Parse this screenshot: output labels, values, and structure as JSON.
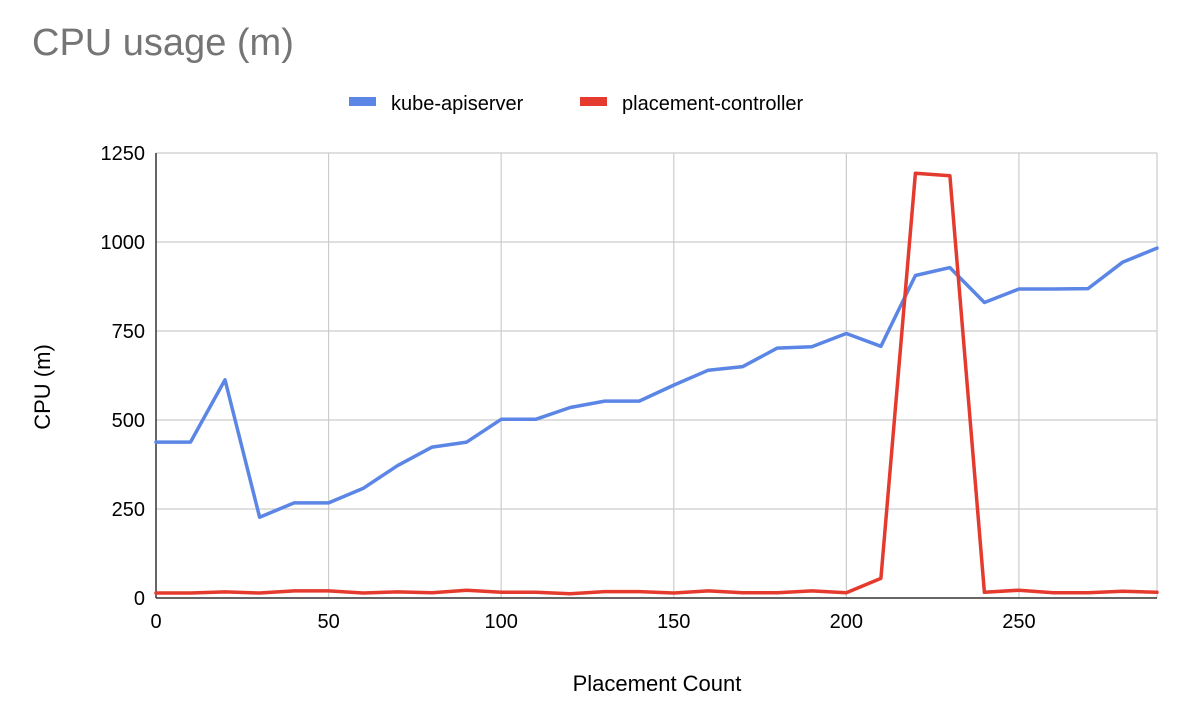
{
  "chart_data": {
    "type": "line",
    "title": "CPU usage (m)",
    "xlabel": "Placement Count",
    "ylabel": "CPU (m)",
    "xlim": [
      0,
      290
    ],
    "ylim": [
      0,
      1250
    ],
    "xticks": [
      0,
      50,
      100,
      150,
      200,
      250
    ],
    "yticks": [
      0,
      250,
      500,
      750,
      1000,
      1250
    ],
    "grid": true,
    "legend_position": "top-center",
    "x": [
      0,
      10,
      20,
      30,
      40,
      50,
      60,
      70,
      80,
      90,
      100,
      110,
      120,
      130,
      140,
      150,
      160,
      170,
      180,
      190,
      200,
      210,
      220,
      230,
      240,
      250,
      260,
      270,
      280,
      290
    ],
    "series": [
      {
        "name": "kube-apiserver",
        "color": "#5b86e5",
        "values": [
          438,
          438,
          613,
          227,
          267,
          267,
          308,
          372,
          424,
          438,
          502,
          502,
          535,
          553,
          553,
          598,
          640,
          650,
          702,
          706,
          743,
          707,
          906,
          928,
          830,
          868,
          868,
          869,
          943,
          983
        ]
      },
      {
        "name": "placement-controller",
        "color": "#e53b2f",
        "values": [
          14,
          14,
          17,
          14,
          20,
          20,
          14,
          17,
          15,
          22,
          16,
          16,
          12,
          18,
          18,
          14,
          20,
          15,
          15,
          20,
          15,
          55,
          1193,
          1186,
          16,
          22,
          15,
          15,
          19,
          16
        ]
      }
    ]
  }
}
